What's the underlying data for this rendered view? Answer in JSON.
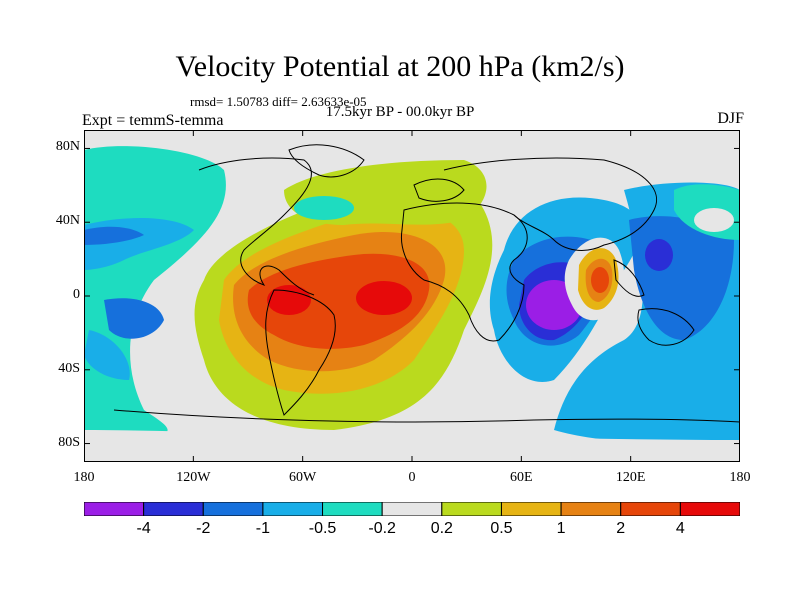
{
  "figure": {
    "title": "Velocity Potential at 200 hPa (km2/s)",
    "stats": "rmsd= 1.50783 diff= 2.63633e-05",
    "period": "17.5kyr BP - 00.0kyr BP",
    "left_label": "Expt = temmS-temma",
    "right_label": "DJF"
  },
  "map": {
    "projection": "cylindrical equidistant",
    "lon_range": [
      -180,
      180
    ],
    "lat_range": [
      -90,
      90
    ],
    "lat_ticks": [
      {
        "value": 80,
        "label": "80N"
      },
      {
        "value": 40,
        "label": "40N"
      },
      {
        "value": 0,
        "label": "0"
      },
      {
        "value": -40,
        "label": "40S"
      },
      {
        "value": -80,
        "label": "80S"
      }
    ],
    "lon_ticks": [
      {
        "value": -180,
        "label": "180"
      },
      {
        "value": -120,
        "label": "120W"
      },
      {
        "value": -60,
        "label": "60W"
      },
      {
        "value": 0,
        "label": "0"
      },
      {
        "value": 60,
        "label": "60E"
      },
      {
        "value": 120,
        "label": "120E"
      },
      {
        "value": 180,
        "label": "180"
      }
    ]
  },
  "colorbar": {
    "colors": [
      "#9b1ee6",
      "#2a2ed6",
      "#1670dc",
      "#19aee8",
      "#1edcc0",
      "#e6e6e6",
      "#bada1e",
      "#e6b414",
      "#e68214",
      "#e6460a",
      "#e60a0a"
    ],
    "labels": [
      "-4",
      "-2",
      "-1",
      "-0.5",
      "-0.2",
      "0.2",
      "0.5",
      "1",
      "2",
      "4"
    ]
  }
}
